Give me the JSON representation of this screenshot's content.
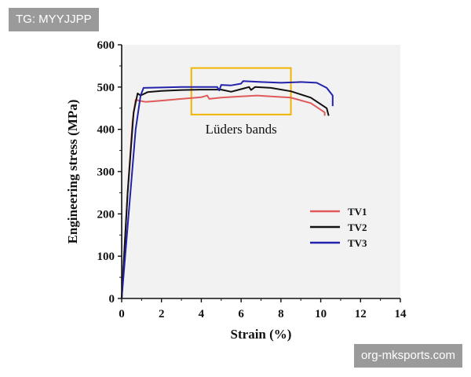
{
  "watermarks": {
    "top_left": "TG: MYYJJPP",
    "bottom_right": "org-mksports.com"
  },
  "chart_data": {
    "type": "line",
    "title": "",
    "xlabel": "Strain (%)",
    "ylabel": "Engineering stress (MPa)",
    "xlim": [
      0,
      14
    ],
    "ylim": [
      0,
      600
    ],
    "xticks": [
      0,
      2,
      4,
      6,
      8,
      10,
      12,
      14
    ],
    "yticks": [
      0,
      100,
      200,
      300,
      400,
      500,
      600
    ],
    "grid": false,
    "legend_position": "right",
    "series": [
      {
        "name": "TV1",
        "color": "#e05a5a",
        "points": [
          [
            0,
            0
          ],
          [
            0.3,
            250
          ],
          [
            0.55,
            420
          ],
          [
            0.7,
            470
          ],
          [
            0.85,
            468
          ],
          [
            1.2,
            465
          ],
          [
            2,
            468
          ],
          [
            3,
            472
          ],
          [
            4,
            476
          ],
          [
            4.3,
            480
          ],
          [
            4.4,
            472
          ],
          [
            5,
            475
          ],
          [
            6,
            478
          ],
          [
            6.8,
            480
          ],
          [
            7.5,
            478
          ],
          [
            8.5,
            475
          ],
          [
            9.5,
            462
          ],
          [
            10.2,
            440
          ],
          [
            10.2,
            432
          ]
        ]
      },
      {
        "name": "TV2",
        "color": "#111111",
        "points": [
          [
            0,
            0
          ],
          [
            0.3,
            250
          ],
          [
            0.6,
            440
          ],
          [
            0.8,
            485
          ],
          [
            0.95,
            480
          ],
          [
            1.3,
            488
          ],
          [
            2,
            491
          ],
          [
            3,
            493
          ],
          [
            4,
            494
          ],
          [
            5,
            494
          ],
          [
            5.5,
            489
          ],
          [
            6,
            495
          ],
          [
            6.4,
            500
          ],
          [
            6.5,
            493
          ],
          [
            6.7,
            500
          ],
          [
            7.5,
            498
          ],
          [
            8.5,
            490
          ],
          [
            9.5,
            475
          ],
          [
            10.3,
            450
          ],
          [
            10.4,
            432
          ]
        ]
      },
      {
        "name": "TV3",
        "color": "#2222aa",
        "points": [
          [
            0,
            0
          ],
          [
            0.35,
            200
          ],
          [
            0.7,
            400
          ],
          [
            0.95,
            480
          ],
          [
            1.1,
            498
          ],
          [
            2,
            499
          ],
          [
            3,
            500
          ],
          [
            4,
            500
          ],
          [
            4.8,
            500
          ],
          [
            4.9,
            492
          ],
          [
            5.0,
            505
          ],
          [
            5.5,
            504
          ],
          [
            6,
            508
          ],
          [
            6.1,
            514
          ],
          [
            7,
            512
          ],
          [
            8,
            510
          ],
          [
            9,
            512
          ],
          [
            9.8,
            510
          ],
          [
            10.3,
            498
          ],
          [
            10.6,
            480
          ],
          [
            10.6,
            455
          ]
        ]
      }
    ],
    "annotations": [
      {
        "text": "Lüders bands",
        "box_x": [
          3.5,
          8.5
        ],
        "box_y": [
          435,
          545
        ],
        "box_color": "#f0b400"
      }
    ]
  }
}
